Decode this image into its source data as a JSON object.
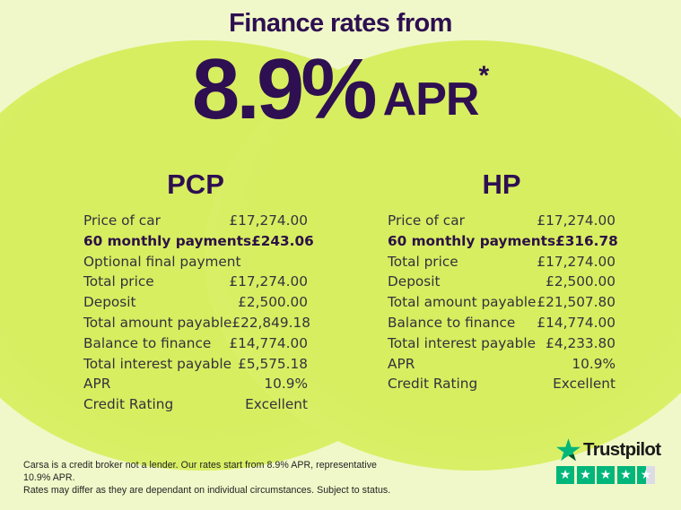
{
  "colors": {
    "background_pale": "#f0f8c9",
    "circle_green": "#d8ef63",
    "heading_purple": "#2e0f51",
    "table_text": "#35313d",
    "trustpilot_green": "#00b67a",
    "empty_star_gray": "#dcdce6"
  },
  "header": {
    "title": "Finance rates from",
    "rate": "8.9%",
    "rate_unit": "APR",
    "rate_footnote": "*"
  },
  "pcp": {
    "title": "PCP",
    "rows": [
      {
        "label": "Price of car",
        "value": "£17,274.00",
        "bold": false
      },
      {
        "label": "60 monthly payments",
        "value": "£243.06",
        "bold": true
      },
      {
        "label": "Optional final payment",
        "value": "",
        "bold": false
      },
      {
        "label": "Total price",
        "value": "£17,274.00",
        "bold": false
      },
      {
        "label": "Deposit",
        "value": "£2,500.00",
        "bold": false
      },
      {
        "label": "Total amount payable",
        "value": "£22,849.18",
        "bold": false
      },
      {
        "label": "Balance to finance",
        "value": "£14,774.00",
        "bold": false
      },
      {
        "label": "Total interest payable",
        "value": "£5,575.18",
        "bold": false
      },
      {
        "label": "APR",
        "value": "10.9%",
        "bold": false
      },
      {
        "label": "Credit Rating",
        "value": "Excellent",
        "bold": false
      }
    ]
  },
  "hp": {
    "title": "HP",
    "rows": [
      {
        "label": "Price of car",
        "value": "£17,274.00",
        "bold": false
      },
      {
        "label": "60 monthly payments",
        "value": "£316.78",
        "bold": true
      },
      {
        "label": "Total price",
        "value": "£17,274.00",
        "bold": false
      },
      {
        "label": "Deposit",
        "value": "£2,500.00",
        "bold": false
      },
      {
        "label": "Total amount payable",
        "value": "£21,507.80",
        "bold": false
      },
      {
        "label": "Balance to finance",
        "value": "£14,774.00",
        "bold": false
      },
      {
        "label": "Total interest payable",
        "value": "£4,233.80",
        "bold": false
      },
      {
        "label": "APR",
        "value": "10.9%",
        "bold": false
      },
      {
        "label": "Credit Rating",
        "value": "Excellent",
        "bold": false
      }
    ]
  },
  "footer": {
    "disclaimer_line1": "Carsa is a credit broker not a lender. Our rates start from 8.9% APR, representative 10.9% APR.",
    "disclaimer_line2": "Rates may differ as they are dependant on individual circumstances. Subject to status."
  },
  "trustpilot": {
    "brand": "Trustpilot",
    "rating": 4.5,
    "max_stars": 5
  }
}
